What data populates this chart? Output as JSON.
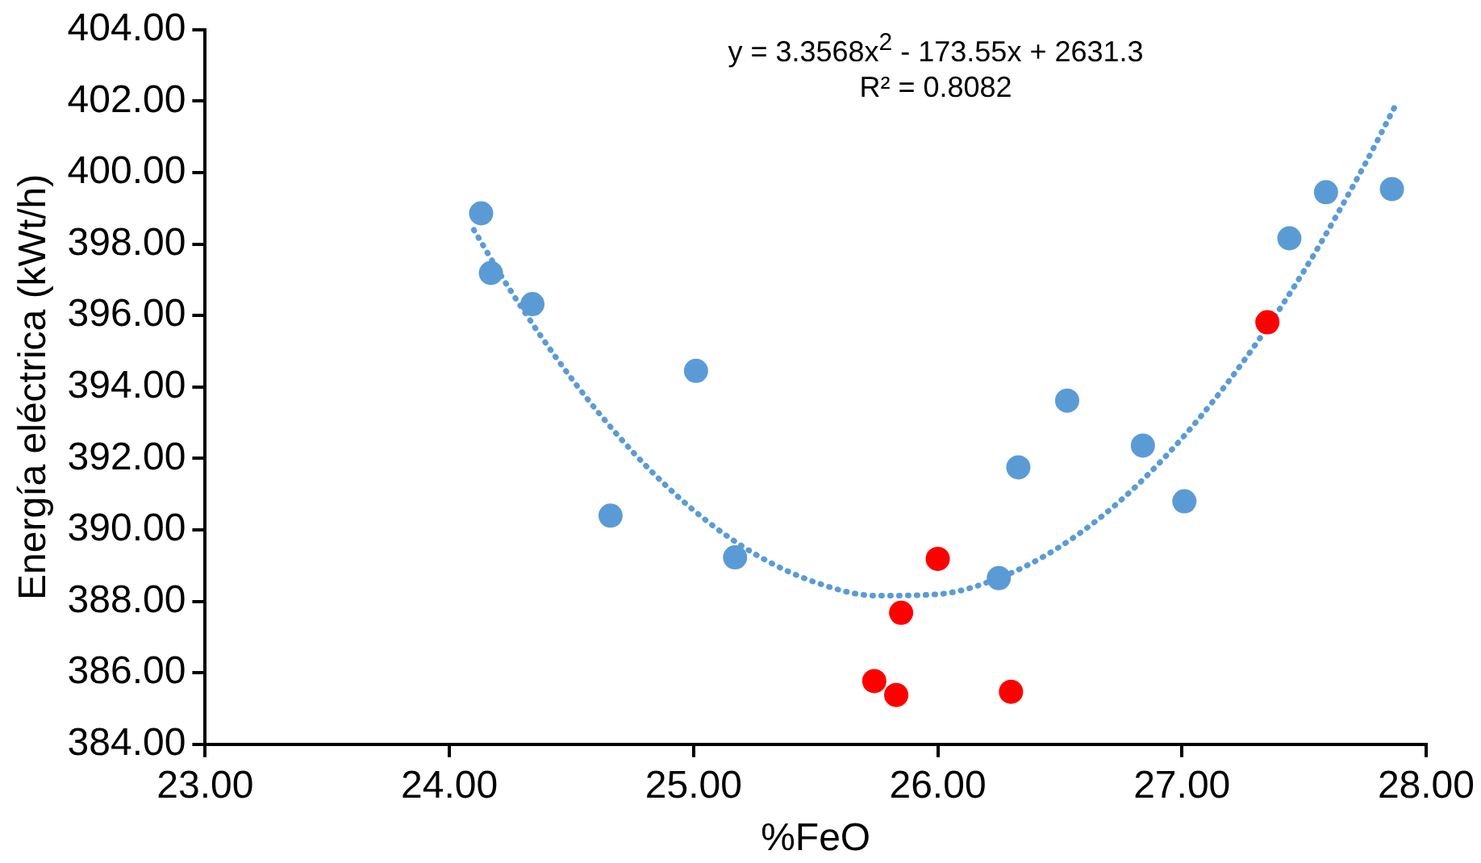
{
  "chart_data": {
    "type": "scatter",
    "xlabel": "%FeO",
    "ylabel": "Energía eléctrica (kWt/h)",
    "annotations": [
      "y = 3.3568x$^{2}$ - 173.55x + 2631.3",
      "R² = 0.8082"
    ],
    "series": [
      {
        "color": "#5b9bd5",
        "x": [
          24.13,
          24.17,
          24.34,
          24.66,
          25.01,
          25.17,
          26.25,
          26.33,
          26.53,
          26.84,
          27.01,
          27.44,
          27.59,
          27.86
        ],
        "values": [
          398.86,
          397.19,
          396.32,
          390.4,
          394.45,
          389.23,
          388.65,
          391.75,
          393.62,
          392.36,
          390.8,
          398.16,
          399.45,
          399.54
        ]
      },
      {
        "color": "#ff0000",
        "x": [
          25.74,
          25.83,
          25.85,
          26.0,
          26.3,
          27.35
        ],
        "values": [
          385.77,
          385.38,
          387.68,
          389.19,
          385.47,
          395.81
        ]
      },
      {
        "type": "line",
        "color": "#5b9bd5",
        "line_style": "dotted",
        "marker": "none",
        "x": [
          24.1,
          24.25,
          24.5,
          24.75,
          25.0,
          25.25,
          25.5,
          25.75,
          26.0,
          26.25,
          26.5,
          26.75,
          27.0,
          27.25,
          27.5,
          27.75,
          27.87
        ],
        "values": [
          398.4,
          396.7,
          394.24,
          392.19,
          390.55,
          389.33,
          388.53,
          388.16,
          388.2,
          388.65,
          389.53,
          390.83,
          392.56,
          394.7,
          397.25,
          400.24,
          401.82
        ]
      }
    ],
    "xlim": [
      23,
      28
    ],
    "xticks": [
      {
        "value": 23,
        "label": "23.00"
      },
      {
        "value": 24,
        "label": "24.00"
      },
      {
        "value": 25,
        "label": "25.00"
      },
      {
        "value": 26,
        "label": "26.00"
      },
      {
        "value": 27,
        "label": "27.00"
      },
      {
        "value": 28,
        "label": "28.00"
      }
    ],
    "ylim": [
      384,
      404
    ],
    "yticks": [
      {
        "value": 384,
        "label": "384.00"
      },
      {
        "value": 386,
        "label": "386.00"
      },
      {
        "value": 388,
        "label": "388.00"
      },
      {
        "value": 390,
        "label": "390.00"
      },
      {
        "value": 392,
        "label": "392.00"
      },
      {
        "value": 394,
        "label": "394.00"
      },
      {
        "value": 396,
        "label": "396.00"
      },
      {
        "value": 398,
        "label": "398.00"
      },
      {
        "value": 400,
        "label": "400.00"
      },
      {
        "value": 402,
        "label": "402.00"
      },
      {
        "value": 404,
        "label": "404.00"
      }
    ],
    "grid": false,
    "legend": false,
    "marker": "circle"
  }
}
